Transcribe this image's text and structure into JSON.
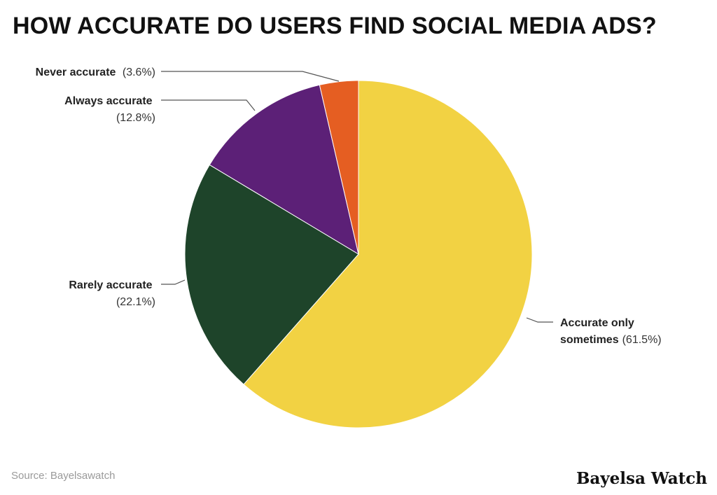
{
  "chart_data": {
    "type": "pie",
    "title": "HOW ACCURATE DO USERS FIND SOCIAL MEDIA ADS?",
    "slices": [
      {
        "label": "Accurate only sometimes",
        "value": 61.5,
        "display": "(61.5%)",
        "color": "#F2D243"
      },
      {
        "label": "Rarely accurate",
        "value": 22.1,
        "display": "(22.1%)",
        "color": "#1E442A"
      },
      {
        "label": "Always accurate",
        "value": 12.8,
        "display": "(12.8%)",
        "color": "#5C2077"
      },
      {
        "label": "Never accurate",
        "value": 3.6,
        "display": "(3.6%)",
        "color": "#E55E22"
      }
    ]
  },
  "footer": {
    "source": "Source: Bayelsawatch",
    "brand": "Bayelsa Watch"
  }
}
